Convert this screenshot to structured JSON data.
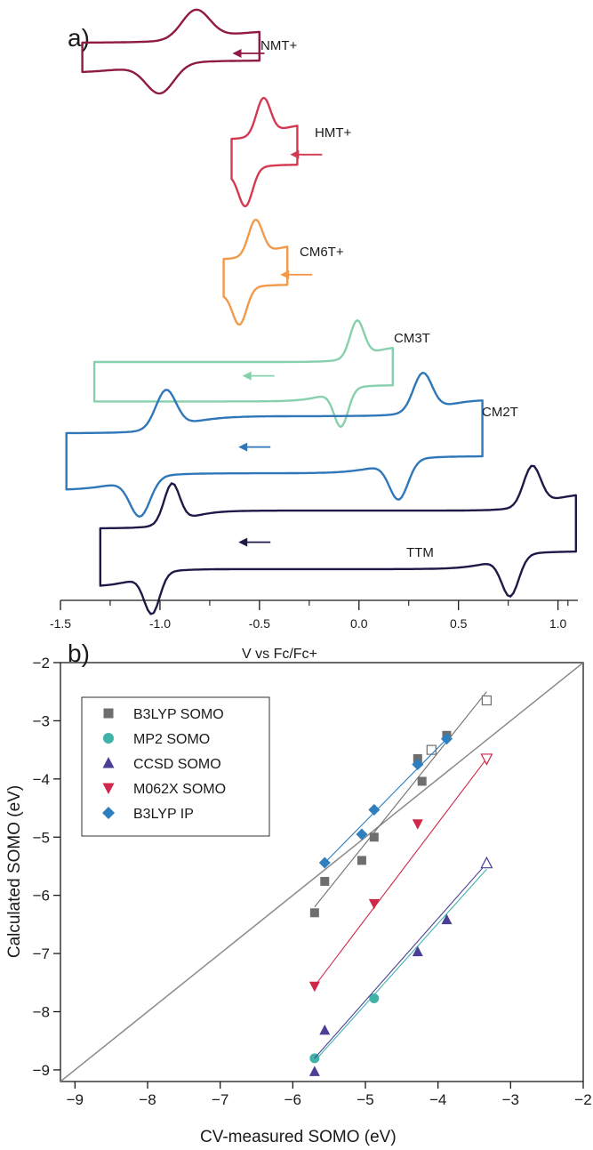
{
  "chart_data": [
    {
      "type": "line",
      "panel_label": "a)",
      "xlabel": "V vs Fc/Fc+",
      "ylabel": "",
      "xlim": [
        -1.5,
        1.1
      ],
      "xticks": [
        -1.5,
        -1.0,
        -0.5,
        0.0,
        0.5,
        1.0
      ],
      "xtick_labels": [
        "-1.5",
        "-1.0",
        "-0.5",
        "0.0",
        "0.5",
        "1.0"
      ],
      "y_axis_shown": false,
      "series": [
        {
          "name": "NMT+",
          "color": "#8e1a45",
          "couples": [
            {
              "E_pc": -1.0,
              "E_pa": -0.82
            }
          ],
          "scan_start": -0.5,
          "scan_end": -1.39,
          "arrow_at": -0.6,
          "arrow_direction": "negative"
        },
        {
          "name": "HMT+",
          "color": "#d33a52",
          "couples": [
            {
              "E_pc": -0.57,
              "E_pa": -0.48
            }
          ],
          "scan_start": -0.31,
          "scan_end": -0.64,
          "arrow_at": -0.31,
          "arrow_direction": "negative"
        },
        {
          "name": "CM6T+",
          "color": "#f39a4a",
          "couples": [
            {
              "E_pc": -0.6,
              "E_pa": -0.52
            }
          ],
          "scan_start": -0.36,
          "scan_end": -0.68,
          "arrow_at": -0.36,
          "arrow_direction": "negative"
        },
        {
          "name": "CM3T",
          "color": "#86d0ac",
          "couples": [
            {
              "E_pc": -0.09,
              "E_pa": -0.01
            }
          ],
          "scan_start": 0.17,
          "scan_end": -1.33,
          "arrow_at": -0.55,
          "arrow_direction": "negative"
        },
        {
          "name": "CM2T",
          "color": "#2f77b8",
          "couples": [
            {
              "E_pc": -1.1,
              "E_pa": -0.97
            },
            {
              "E_pc": 0.2,
              "E_pa": 0.32
            }
          ],
          "scan_start": 0.62,
          "scan_end": -1.47,
          "arrow_at": -0.57,
          "arrow_direction": "negative"
        },
        {
          "name": "TTM",
          "color": "#1e1a48",
          "couples": [
            {
              "E_pc": -1.04,
              "E_pa": -0.94
            },
            {
              "E_pc": 0.76,
              "E_pa": 0.87
            }
          ],
          "scan_start": 1.09,
          "scan_end": -1.3,
          "arrow_at": -0.57,
          "arrow_direction": "negative"
        }
      ]
    },
    {
      "type": "scatter",
      "panel_label": "b)",
      "xlabel": "CV-measured SOMO (eV)",
      "ylabel": "Calculated SOMO (eV)",
      "xlim": [
        -9.2,
        -2
      ],
      "ylim": [
        -9.2,
        -2
      ],
      "xticks": [
        -9,
        -8,
        -7,
        -6,
        -5,
        -4,
        -3,
        -2
      ],
      "yticks": [
        -9,
        -8,
        -7,
        -6,
        -5,
        -4,
        -3,
        -2
      ],
      "xtick_labels": [
        "−9",
        "−8",
        "−7",
        "−6",
        "−5",
        "−4",
        "−3",
        "−2"
      ],
      "ytick_labels": [
        "−9",
        "−8",
        "−7",
        "−6",
        "−5",
        "−4",
        "−3",
        "−2"
      ],
      "grid": false,
      "legend_position": "top-left",
      "reference_line": {
        "kind": "y = x",
        "color": "#8a8a8a"
      },
      "series": [
        {
          "name": "B3LYP SOMO",
          "marker": "square",
          "color": "#6e6e6e",
          "points": [
            [
              -5.7,
              -6.3
            ],
            [
              -5.56,
              -5.76
            ],
            [
              -5.05,
              -5.4
            ],
            [
              -4.88,
              -5.0
            ],
            [
              -4.28,
              -3.65
            ],
            [
              -4.22,
              -4.04
            ],
            [
              -3.88,
              -3.25
            ]
          ],
          "open_points": [
            [
              -3.33,
              -2.65
            ],
            [
              -4.09,
              -3.5
            ]
          ],
          "fit": [
            [
              -5.7,
              -6.2
            ],
            [
              -3.33,
              -2.5
            ]
          ]
        },
        {
          "name": "MP2 SOMO",
          "marker": "circle",
          "color": "#3fb3a8",
          "points": [
            [
              -5.7,
              -8.8
            ],
            [
              -4.88,
              -7.77
            ]
          ],
          "open_points": [],
          "fit": [
            [
              -5.7,
              -8.85
            ],
            [
              -3.33,
              -5.55
            ]
          ]
        },
        {
          "name": "CCSD SOMO",
          "marker": "triangle-up",
          "color": "#4a3f96",
          "points": [
            [
              -5.7,
              -9.03
            ],
            [
              -5.56,
              -8.32
            ],
            [
              -4.28,
              -6.97
            ],
            [
              -3.88,
              -6.42
            ]
          ],
          "open_points": [
            [
              -3.33,
              -5.45
            ]
          ],
          "fit": [
            [
              -5.7,
              -8.8
            ],
            [
              -3.33,
              -5.45
            ]
          ]
        },
        {
          "name": "M062X SOMO",
          "marker": "triangle-down",
          "color": "#d0284a",
          "points": [
            [
              -5.7,
              -7.56
            ],
            [
              -4.88,
              -6.14
            ],
            [
              -4.28,
              -4.77
            ]
          ],
          "open_points": [
            [
              -3.33,
              -3.65
            ]
          ],
          "fit": [
            [
              -5.7,
              -7.56
            ],
            [
              -3.33,
              -3.65
            ]
          ]
        },
        {
          "name": "B3LYP IP",
          "marker": "diamond",
          "color": "#2f7fbf",
          "points": [
            [
              -5.56,
              -5.44
            ],
            [
              -5.05,
              -4.95
            ],
            [
              -4.88,
              -4.53
            ],
            [
              -4.28,
              -3.75
            ],
            [
              -3.88,
              -3.31
            ]
          ],
          "open_points": [],
          "fit": [
            [
              -5.56,
              -5.44
            ],
            [
              -3.88,
              -3.31
            ]
          ]
        }
      ]
    }
  ]
}
